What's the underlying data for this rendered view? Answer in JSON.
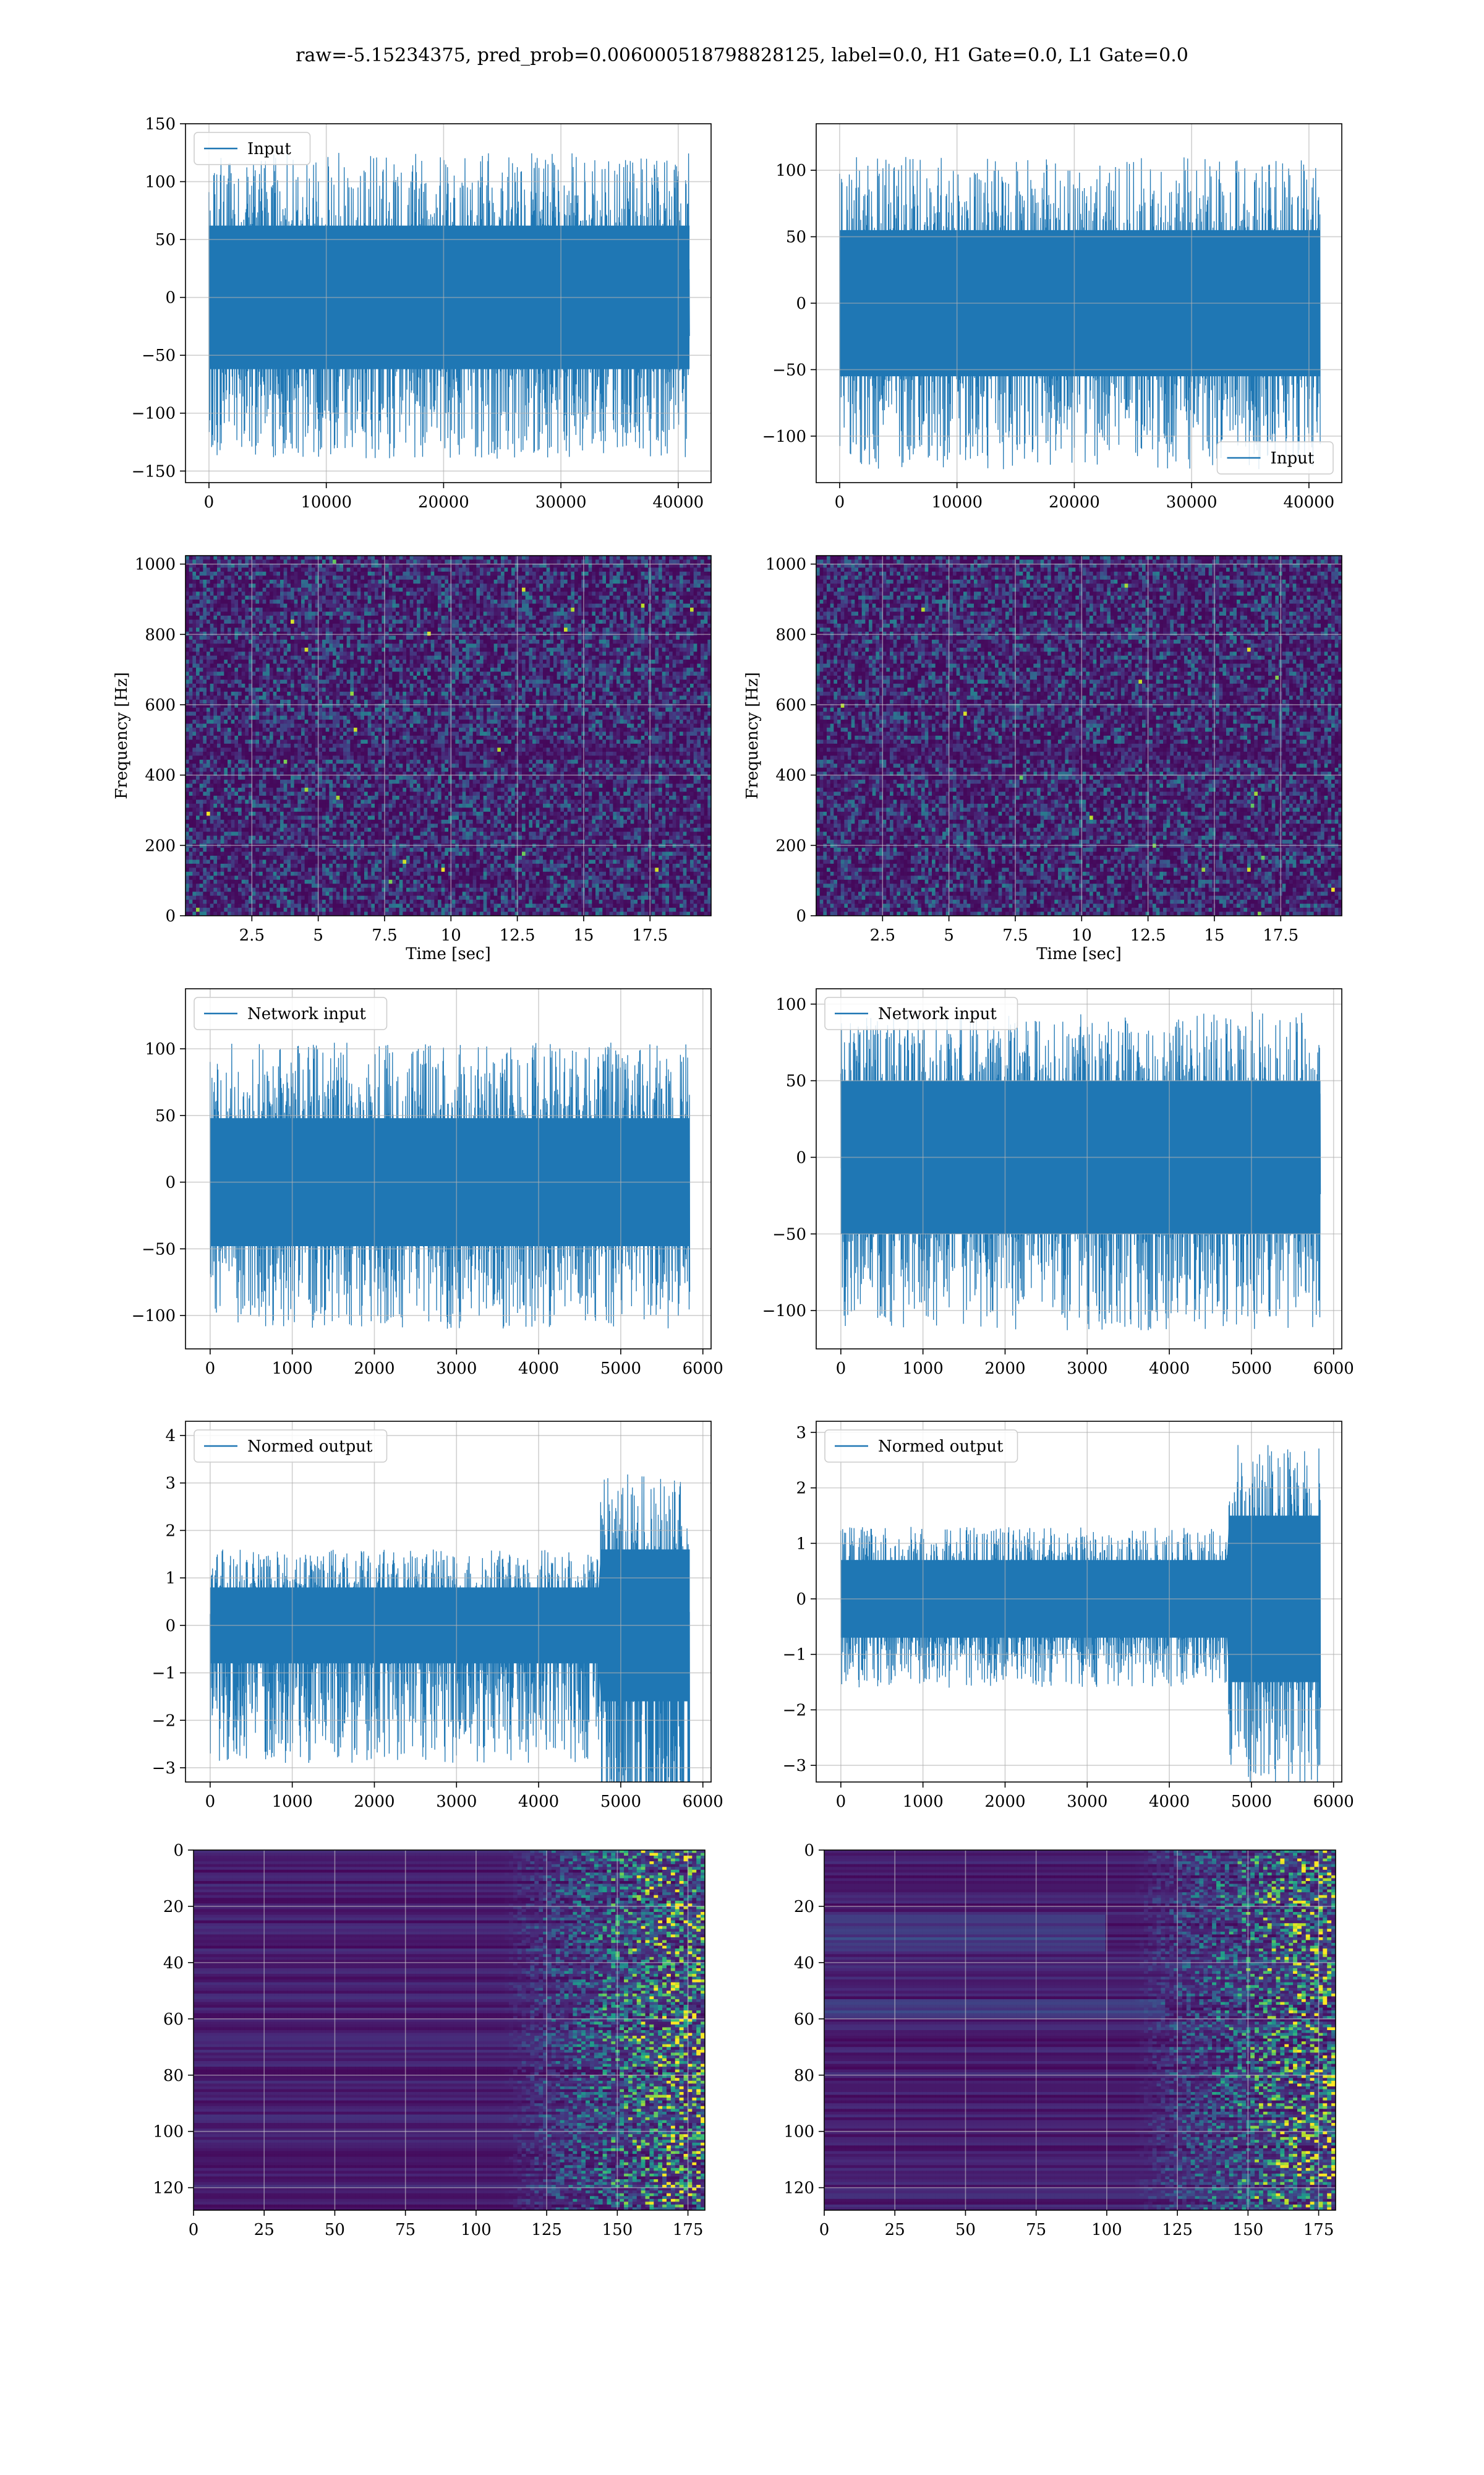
{
  "figure": {
    "suptitle": "raw=-5.15234375, pred_prob=0.006000518798828125, label=0.0, H1 Gate=0.0, L1 Gate=0.0"
  },
  "colors": {
    "line": "#1f77b4",
    "grid": "#b0b0b0",
    "viridis_dark": "#440154",
    "viridis_yellow": "#fde725"
  },
  "chart_data": [
    {
      "id": "h1-input",
      "type": "line",
      "row": 0,
      "col": 0,
      "xlim": [
        -2000,
        42800
      ],
      "ylim": [
        -160,
        150
      ],
      "xticks": [
        0,
        10000,
        20000,
        30000,
        40000
      ],
      "yticks": [
        -150,
        -100,
        -50,
        0,
        50,
        100,
        150
      ],
      "xlabel": "",
      "ylabel": "",
      "legend": {
        "label": "Input",
        "loc": "upper-left"
      },
      "series": {
        "xmax": 40960,
        "core": 62,
        "spike": 125,
        "min_spike": 140
      }
    },
    {
      "id": "l1-input",
      "type": "line",
      "row": 0,
      "col": 1,
      "xlim": [
        -2000,
        42800
      ],
      "ylim": [
        -135,
        135
      ],
      "xticks": [
        0,
        10000,
        20000,
        30000,
        40000
      ],
      "yticks": [
        -100,
        -50,
        0,
        50,
        100
      ],
      "xlabel": "",
      "ylabel": "",
      "legend": {
        "label": "Input",
        "loc": "lower-right"
      },
      "series": {
        "xmax": 40960,
        "core": 55,
        "spike": 110,
        "min_spike": 125
      }
    },
    {
      "id": "h1-spectrogram",
      "type": "heatmap",
      "row": 1,
      "col": 0,
      "xlim": [
        0,
        19.8
      ],
      "ylim": [
        0,
        1024
      ],
      "xticks": [
        2.5,
        5.0,
        7.5,
        10.0,
        12.5,
        15.0,
        17.5
      ],
      "yticks": [
        0,
        200,
        400,
        600,
        800,
        1000
      ],
      "xlabel": "Time [sec]",
      "ylabel": "Frequency [Hz]"
    },
    {
      "id": "l1-spectrogram",
      "type": "heatmap",
      "row": 1,
      "col": 1,
      "xlim": [
        0,
        19.8
      ],
      "ylim": [
        0,
        1024
      ],
      "xticks": [
        2.5,
        5.0,
        7.5,
        10.0,
        12.5,
        15.0,
        17.5
      ],
      "yticks": [
        0,
        200,
        400,
        600,
        800,
        1000
      ],
      "xlabel": "Time [sec]",
      "ylabel": "Frequency [Hz]"
    },
    {
      "id": "h1-network-input",
      "type": "line",
      "row": 2,
      "col": 0,
      "xlim": [
        -300,
        6100
      ],
      "ylim": [
        -125,
        145
      ],
      "xticks": [
        0,
        1000,
        2000,
        3000,
        4000,
        5000,
        6000
      ],
      "yticks": [
        -100,
        -50,
        0,
        50,
        100
      ],
      "xlabel": "",
      "ylabel": "",
      "legend": {
        "label": "Network input",
        "loc": "upper-left"
      },
      "series": {
        "xmax": 5840,
        "core": 48,
        "spike": 105,
        "min_spike": 110
      }
    },
    {
      "id": "l1-network-input",
      "type": "line",
      "row": 2,
      "col": 1,
      "xlim": [
        -300,
        6100
      ],
      "ylim": [
        -125,
        110
      ],
      "xticks": [
        0,
        1000,
        2000,
        3000,
        4000,
        5000,
        6000
      ],
      "yticks": [
        -100,
        -50,
        0,
        50,
        100
      ],
      "xlabel": "",
      "ylabel": "",
      "legend": {
        "label": "Network input",
        "loc": "upper-left"
      },
      "series": {
        "xmax": 5840,
        "core": 50,
        "spike": 95,
        "min_spike": 113
      }
    },
    {
      "id": "h1-normed-output",
      "type": "line",
      "row": 3,
      "col": 0,
      "xlim": [
        -300,
        6100
      ],
      "ylim": [
        -3.3,
        4.3
      ],
      "xticks": [
        0,
        1000,
        2000,
        3000,
        4000,
        5000,
        6000
      ],
      "yticks": [
        -3,
        -2,
        -1,
        0,
        1,
        2,
        3,
        4
      ],
      "xlabel": "",
      "ylabel": "",
      "legend": {
        "label": "Normed output",
        "loc": "upper-left"
      },
      "series": {
        "xmax": 5840,
        "core": 0.8,
        "spike": 1.6,
        "min_spike": 2.9,
        "burst_start": 4750,
        "burst_core": 1.6,
        "burst_spike": 3.2
      }
    },
    {
      "id": "l1-normed-output",
      "type": "line",
      "row": 3,
      "col": 1,
      "xlim": [
        -300,
        6100
      ],
      "ylim": [
        -3.3,
        3.2
      ],
      "xticks": [
        0,
        1000,
        2000,
        3000,
        4000,
        5000,
        6000
      ],
      "yticks": [
        -3,
        -2,
        -1,
        0,
        1,
        2,
        3
      ],
      "xlabel": "",
      "ylabel": "",
      "legend": {
        "label": "Normed output",
        "loc": "upper-left"
      },
      "series": {
        "xmax": 5840,
        "core": 0.7,
        "spike": 1.3,
        "min_spike": 1.6,
        "burst_start": 4720,
        "burst_core": 1.5,
        "burst_spike": 2.8
      }
    },
    {
      "id": "h1-feature-map",
      "type": "heatmap",
      "row": 4,
      "col": 0,
      "xlim": [
        0,
        181
      ],
      "ylim": [
        128,
        0
      ],
      "xticks": [
        0,
        25,
        50,
        75,
        100,
        125,
        150,
        175
      ],
      "yticks": [
        0,
        20,
        40,
        60,
        80,
        100,
        120
      ],
      "xlabel": "",
      "ylabel": ""
    },
    {
      "id": "l1-feature-map",
      "type": "heatmap",
      "row": 4,
      "col": 1,
      "xlim": [
        0,
        181
      ],
      "ylim": [
        128,
        0
      ],
      "xticks": [
        0,
        25,
        50,
        75,
        100,
        125,
        150,
        175
      ],
      "yticks": [
        0,
        20,
        40,
        60,
        80,
        100,
        120
      ],
      "xlabel": "",
      "ylabel": ""
    }
  ]
}
